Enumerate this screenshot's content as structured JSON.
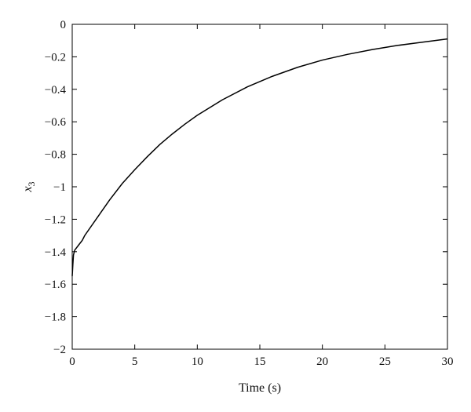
{
  "chart_data": {
    "type": "line",
    "title": "",
    "xlabel": "Time (s)",
    "ylabel_main": "x",
    "ylabel_sub": "3",
    "xlim": [
      0,
      30
    ],
    "ylim": [
      -2,
      0
    ],
    "xticks": [
      0,
      5,
      10,
      15,
      20,
      25,
      30
    ],
    "xtick_labels": [
      "0",
      "5",
      "10",
      "15",
      "20",
      "25",
      "30"
    ],
    "yticks": [
      0,
      -0.2,
      -0.4,
      -0.6,
      -0.8,
      -1,
      -1.2,
      -1.4,
      -1.6,
      -1.8,
      -2
    ],
    "ytick_labels": [
      "0",
      "−0.2",
      "−0.4",
      "−0.6",
      "−0.8",
      "−1",
      "−1.2",
      "−1.4",
      "−1.6",
      "−1.8",
      "−2"
    ],
    "grid": false,
    "line_color": "#000000",
    "series": [
      {
        "x": [
          0,
          0.05,
          0.1,
          0.2,
          0.3,
          0.5,
          0.8,
          1,
          2,
          3,
          4,
          5,
          6,
          7,
          8,
          9,
          10,
          12,
          14,
          16,
          18,
          20,
          22,
          24,
          26,
          28,
          30
        ],
        "y": [
          -1.55,
          -1.48,
          -1.42,
          -1.39,
          -1.38,
          -1.36,
          -1.33,
          -1.3,
          -1.19,
          -1.08,
          -0.98,
          -0.895,
          -0.815,
          -0.74,
          -0.675,
          -0.615,
          -0.56,
          -0.465,
          -0.385,
          -0.32,
          -0.265,
          -0.22,
          -0.185,
          -0.155,
          -0.13,
          -0.11,
          -0.09
        ]
      }
    ]
  }
}
